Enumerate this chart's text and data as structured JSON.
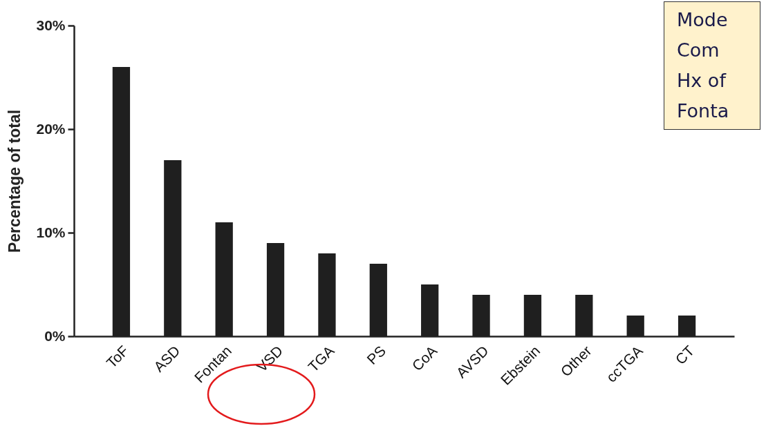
{
  "chart_data": {
    "type": "bar",
    "ylabel": "Percentage of total",
    "categories": [
      "ToF",
      "ASD",
      "Fontan",
      "VSD",
      "TGA",
      "PS",
      "CoA",
      "AVSD",
      "Ebstein",
      "Other",
      "ccTGA",
      "CT"
    ],
    "values": [
      26,
      17,
      11,
      9,
      8,
      7,
      5,
      4,
      4,
      4,
      2,
      2
    ],
    "color": "#1f1f1f",
    "ylim": [
      0,
      30
    ],
    "yticks": [
      {
        "value": 0,
        "label": "0%"
      },
      {
        "value": 10,
        "label": "10%"
      },
      {
        "value": 20,
        "label": "20%"
      },
      {
        "value": 30,
        "label": "30%"
      }
    ],
    "grid": false,
    "annotations": [
      "Mode",
      "Com",
      "Hx of",
      "Fonta"
    ]
  }
}
